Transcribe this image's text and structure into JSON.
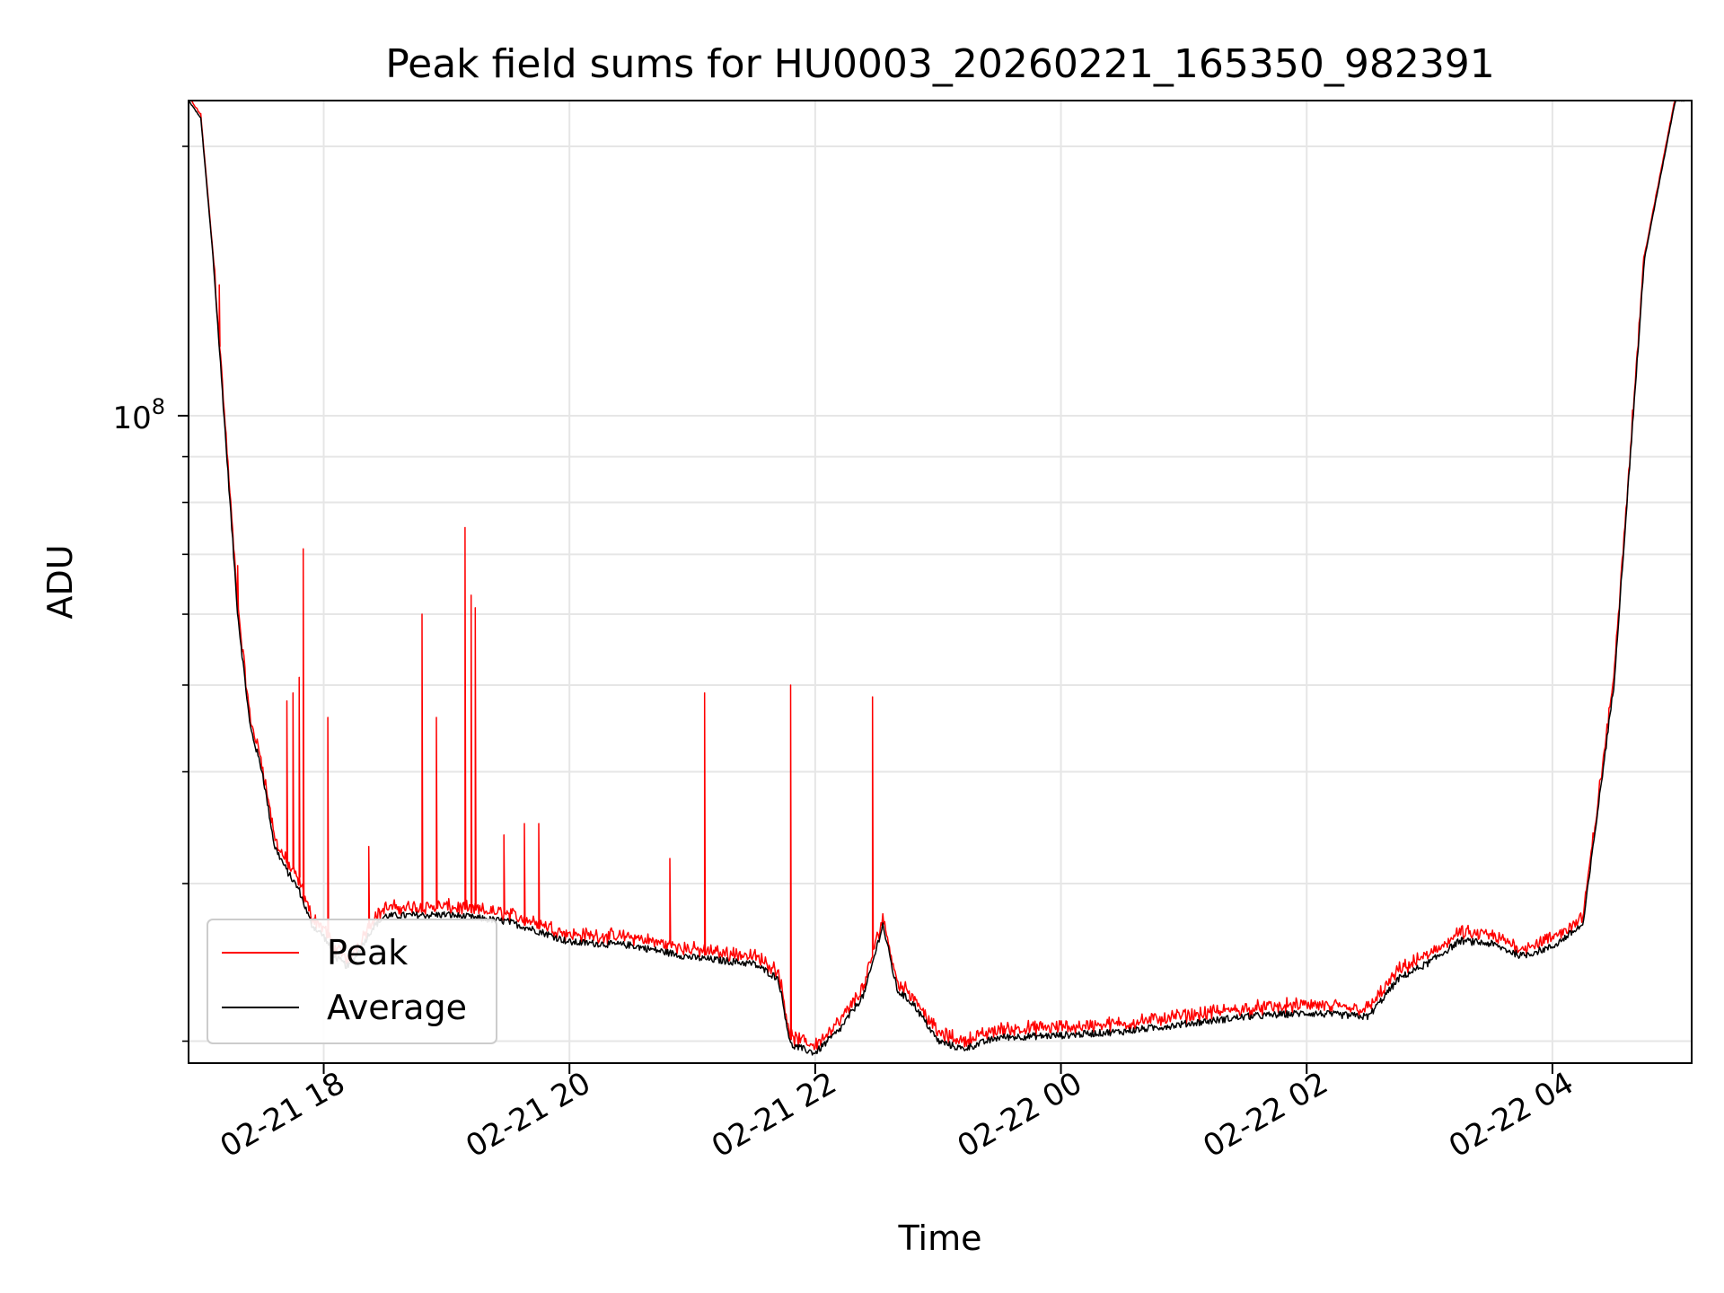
{
  "chart_data": {
    "type": "line",
    "title": "Peak field sums for HU0003_20260221_165350_982391",
    "xlabel": "Time",
    "ylabel": "ADU",
    "x_unit": "hours (local time)",
    "x_range": [
      "02-21 16:54",
      "02-22 05:08"
    ],
    "y_scale": "log",
    "y_range": [
      18900000,
      225000000
    ],
    "x_ticks": [
      {
        "time": "02-21 18:00",
        "label": "02-21 18"
      },
      {
        "time": "02-21 20:00",
        "label": "02-21 20"
      },
      {
        "time": "02-21 22:00",
        "label": "02-21 22"
      },
      {
        "time": "02-22 00:00",
        "label": "02-22 00"
      },
      {
        "time": "02-22 02:00",
        "label": "02-22 02"
      },
      {
        "time": "02-22 04:00",
        "label": "02-22 04"
      }
    ],
    "y_major_ticks": [
      {
        "value": 100000000,
        "label_base": "10",
        "label_exp": "8"
      }
    ],
    "y_minor_ticks": [
      20000000,
      30000000,
      40000000,
      50000000,
      60000000,
      70000000,
      80000000,
      90000000,
      200000000
    ],
    "grid": true,
    "legend": {
      "placement": "lower-left",
      "entries": [
        "Peak",
        "Average"
      ]
    },
    "series": [
      {
        "name": "Average",
        "color": "#000000",
        "points": [
          [
            "02-21 16:54",
            225000000
          ],
          [
            "02-21 17:00",
            215000000
          ],
          [
            "02-21 17:06",
            150000000
          ],
          [
            "02-21 17:12",
            95000000
          ],
          [
            "02-21 17:18",
            60000000
          ],
          [
            "02-21 17:24",
            45000000
          ],
          [
            "02-21 17:30",
            40000000
          ],
          [
            "02-21 17:36",
            33000000
          ],
          [
            "02-21 17:42",
            31000000
          ],
          [
            "02-21 17:48",
            29500000
          ],
          [
            "02-21 17:54",
            27000000
          ],
          [
            "02-21 18:00",
            26200000
          ],
          [
            "02-21 18:06",
            24800000
          ],
          [
            "02-21 18:12",
            24200000
          ],
          [
            "02-21 18:18",
            25400000
          ],
          [
            "02-21 18:24",
            26800000
          ],
          [
            "02-21 18:30",
            27600000
          ],
          [
            "02-21 19:00",
            27700000
          ],
          [
            "02-21 19:30",
            27200000
          ],
          [
            "02-21 19:48",
            26400000
          ],
          [
            "02-21 20:00",
            25800000
          ],
          [
            "02-21 20:30",
            25600000
          ],
          [
            "02-21 21:00",
            24800000
          ],
          [
            "02-21 21:30",
            24400000
          ],
          [
            "02-21 21:42",
            23500000
          ],
          [
            "02-21 21:48",
            19800000
          ],
          [
            "02-21 22:00",
            19400000
          ],
          [
            "02-21 22:12",
            20600000
          ],
          [
            "02-21 22:24",
            22600000
          ],
          [
            "02-21 22:33",
            27000000
          ],
          [
            "02-21 22:40",
            22800000
          ],
          [
            "02-21 22:48",
            22000000
          ],
          [
            "02-21 23:00",
            20000000
          ],
          [
            "02-21 23:12",
            19600000
          ],
          [
            "02-21 23:30",
            20200000
          ],
          [
            "02-22 00:00",
            20300000
          ],
          [
            "02-22 00:30",
            20500000
          ],
          [
            "02-22 01:00",
            20900000
          ],
          [
            "02-22 01:30",
            21300000
          ],
          [
            "02-22 02:00",
            21500000
          ],
          [
            "02-22 02:30",
            21300000
          ],
          [
            "02-22 02:45",
            23500000
          ],
          [
            "02-22 03:00",
            24500000
          ],
          [
            "02-22 03:15",
            25900000
          ],
          [
            "02-22 03:30",
            25700000
          ],
          [
            "02-22 03:45",
            24900000
          ],
          [
            "02-22 04:00",
            25500000
          ],
          [
            "02-22 04:15",
            27000000
          ],
          [
            "02-22 04:30",
            50000000
          ],
          [
            "02-22 04:45",
            150000000
          ],
          [
            "02-22 05:00",
            225000000
          ],
          [
            "02-22 05:08",
            225000000
          ]
        ]
      },
      {
        "name": "Peak",
        "color": "#ff0000",
        "spikes": [
          [
            "02-21 17:09",
            140000000
          ],
          [
            "02-21 17:18",
            68000000
          ],
          [
            "02-21 17:42",
            48000000
          ],
          [
            "02-21 17:45",
            49000000
          ],
          [
            "02-21 17:48",
            51000000
          ],
          [
            "02-21 17:50",
            71000000
          ],
          [
            "02-21 18:02",
            46000000
          ],
          [
            "02-21 18:22",
            33000000
          ],
          [
            "02-21 18:48",
            60000000
          ],
          [
            "02-21 18:55",
            46000000
          ],
          [
            "02-21 19:09",
            75000000
          ],
          [
            "02-21 19:12",
            63000000
          ],
          [
            "02-21 19:14",
            61000000
          ],
          [
            "02-21 19:28",
            34000000
          ],
          [
            "02-21 19:38",
            35000000
          ],
          [
            "02-21 19:45",
            35000000
          ],
          [
            "02-21 20:49",
            32000000
          ],
          [
            "02-21 21:06",
            49000000
          ],
          [
            "02-21 21:48",
            50000000
          ],
          [
            "02-21 22:28",
            48500000
          ]
        ]
      }
    ]
  }
}
